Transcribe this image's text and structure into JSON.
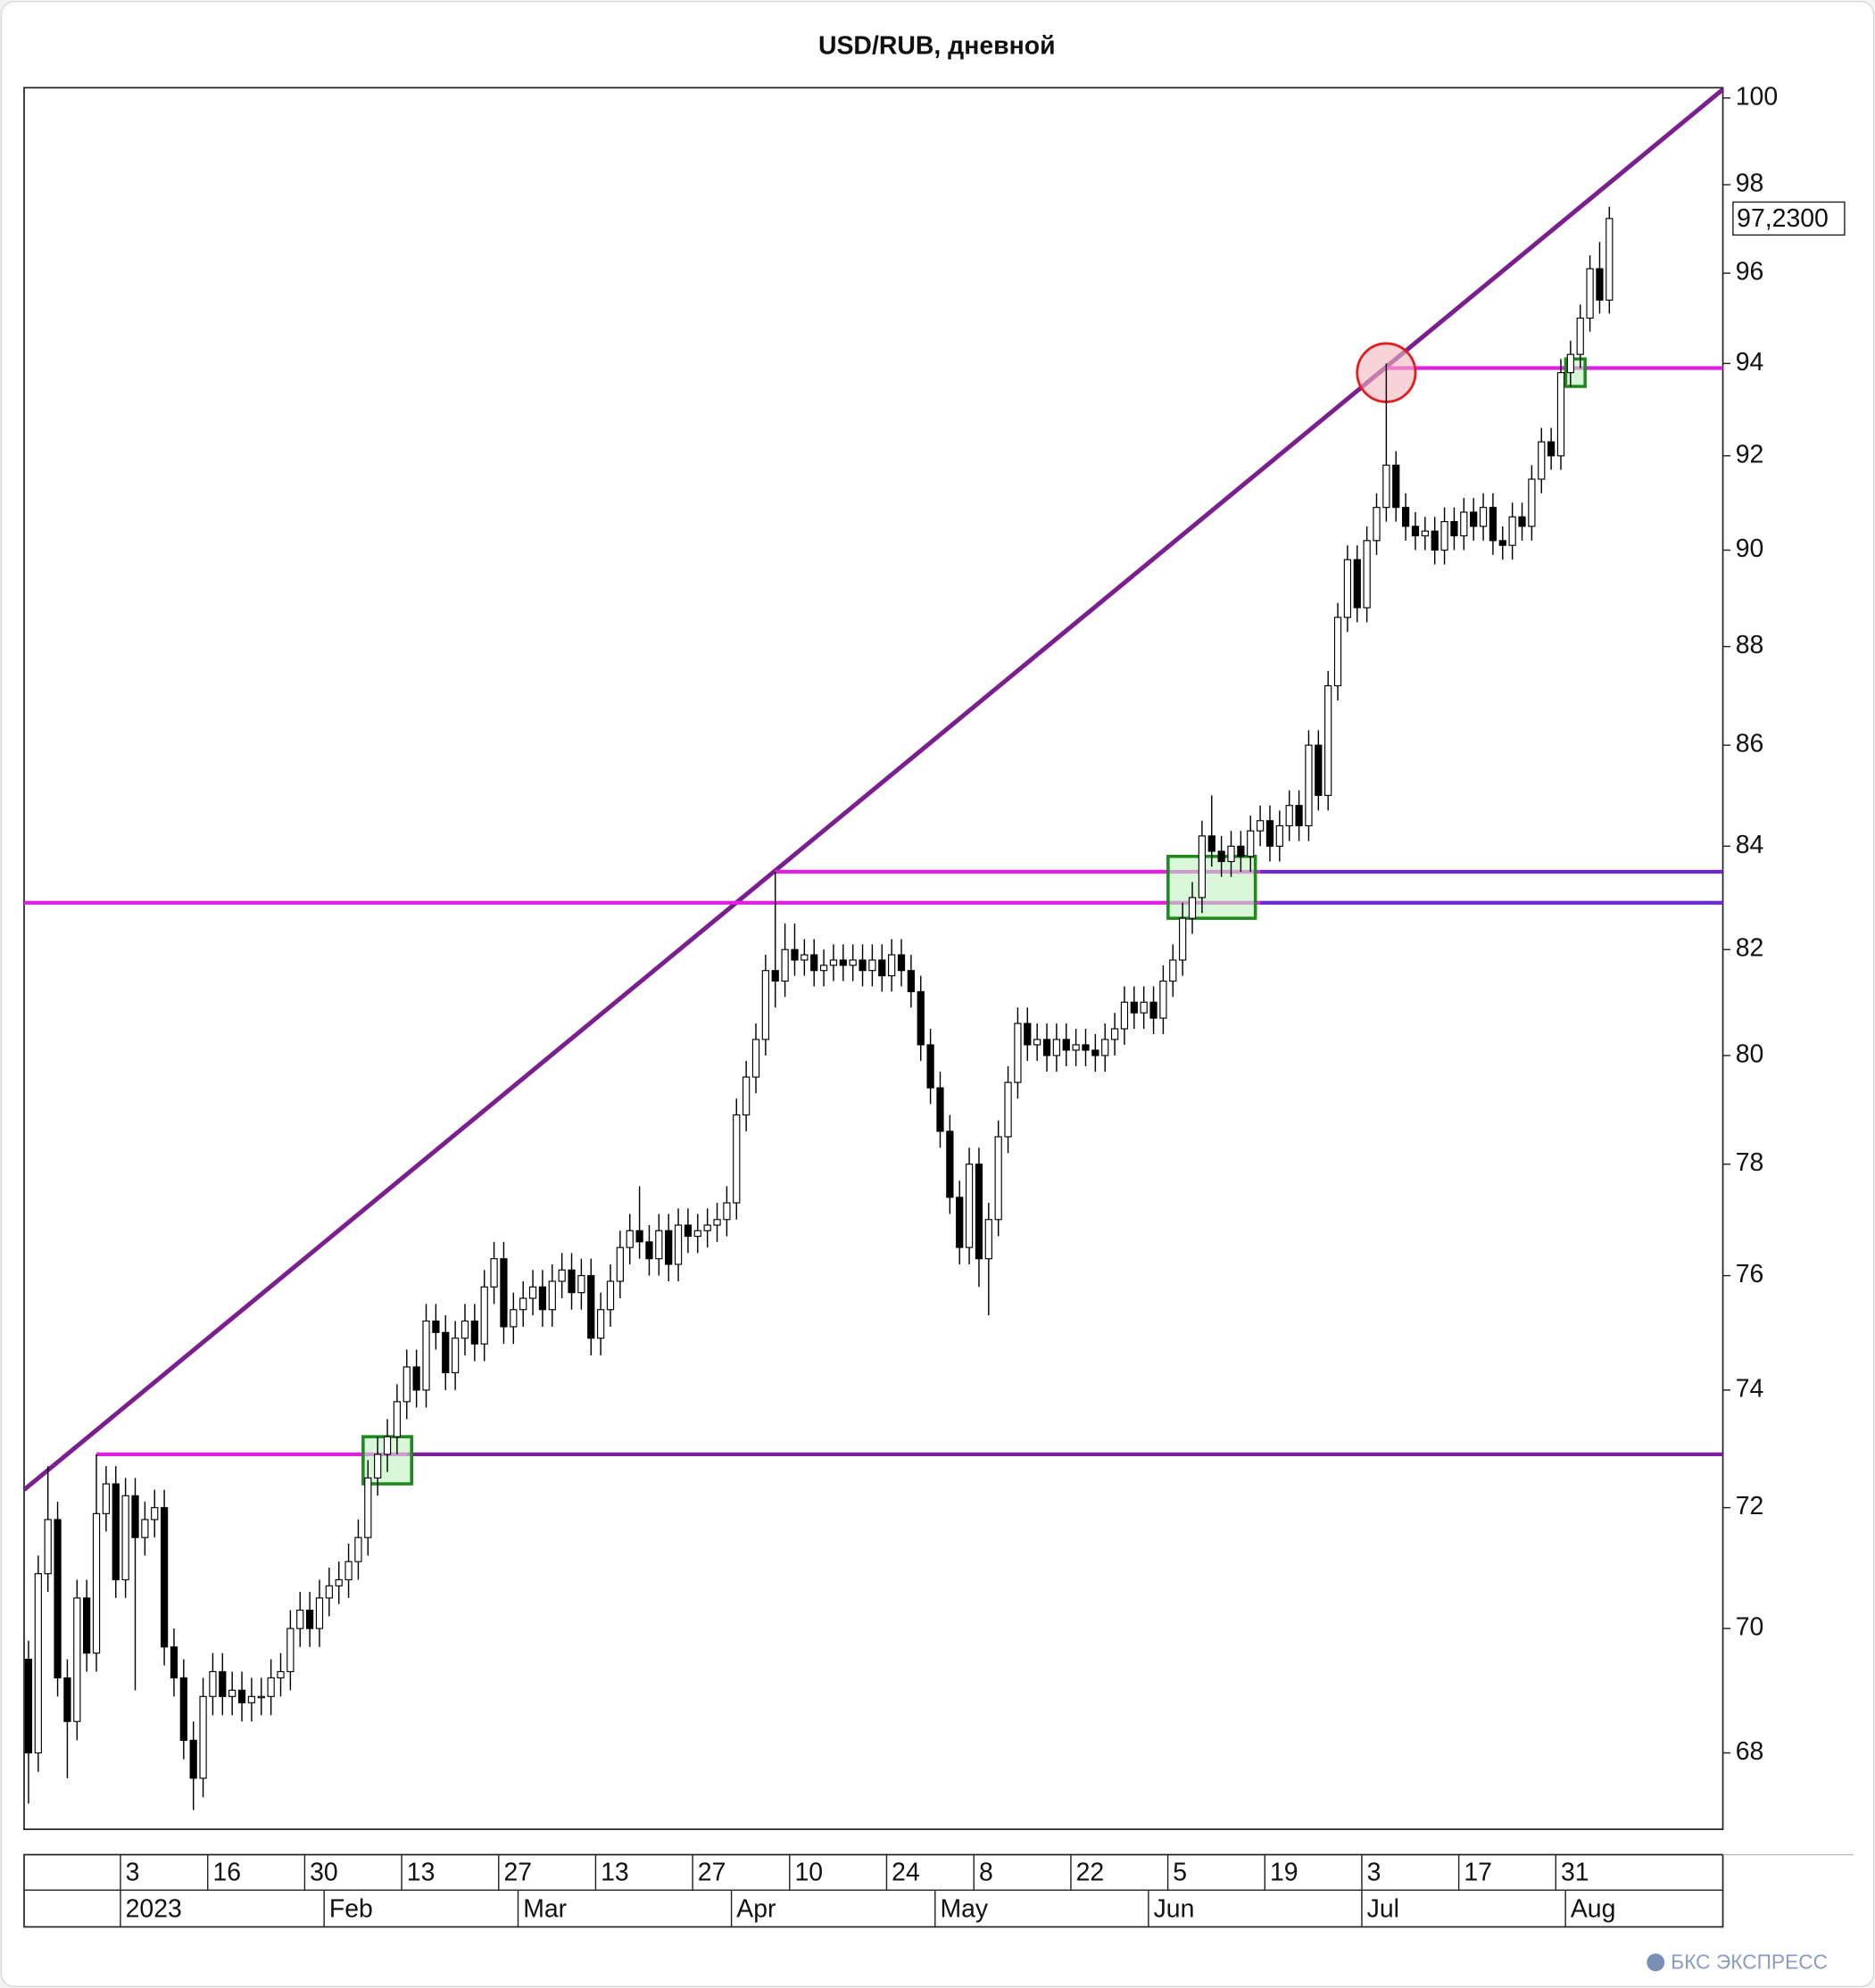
{
  "chart_data": {
    "type": "candlestick",
    "title": "USD/RUB, дневной",
    "watermark": "БКС ЭКСПРЕСС",
    "log_scale": true,
    "ylim": [
      66.8,
      100.24
    ],
    "yticks": [
      68,
      70,
      72,
      74,
      76,
      78,
      80,
      82,
      84,
      86,
      88,
      90,
      92,
      94,
      96,
      98,
      100
    ],
    "last_label": {
      "value": 97.23,
      "label": "97,2300"
    },
    "up_color": "#ffffff",
    "down_color": "#000000",
    "categories": [
      null,
      null,
      null,
      null,
      null,
      null,
      null,
      null,
      null,
      null,
      "3",
      null,
      null,
      null,
      null,
      null,
      null,
      null,
      null,
      "16",
      null,
      null,
      null,
      null,
      null,
      null,
      null,
      null,
      null,
      "30",
      null,
      null,
      null,
      null,
      null,
      null,
      null,
      null,
      null,
      "13",
      null,
      null,
      null,
      null,
      null,
      null,
      null,
      null,
      null,
      "27",
      null,
      null,
      null,
      null,
      null,
      null,
      null,
      null,
      null,
      "13",
      null,
      null,
      null,
      null,
      null,
      null,
      null,
      null,
      null,
      "27",
      null,
      null,
      null,
      null,
      null,
      null,
      null,
      null,
      null,
      "10",
      null,
      null,
      null,
      null,
      null,
      null,
      null,
      null,
      null,
      "24",
      null,
      null,
      null,
      null,
      null,
      null,
      null,
      null,
      "8",
      null,
      null,
      null,
      null,
      null,
      null,
      null,
      null,
      null,
      "22",
      null,
      null,
      null,
      null,
      null,
      null,
      null,
      null,
      null,
      "5",
      null,
      null,
      null,
      null,
      null,
      null,
      null,
      null,
      null,
      "19",
      null,
      null,
      null,
      null,
      null,
      null,
      null,
      null,
      null,
      "3",
      null,
      null,
      null,
      null,
      null,
      null,
      null,
      null,
      null,
      "17",
      null,
      null,
      null,
      null,
      null,
      null,
      null,
      null,
      null,
      "31",
      null,
      null,
      null,
      null,
      null
    ],
    "periods": [
      null,
      null,
      null,
      null,
      null,
      null,
      null,
      null,
      null,
      null,
      "2023",
      null,
      null,
      null,
      null,
      null,
      null,
      null,
      null,
      null,
      null,
      null,
      null,
      null,
      null,
      null,
      null,
      null,
      null,
      null,
      null,
      "Feb",
      null,
      null,
      null,
      null,
      null,
      null,
      null,
      null,
      null,
      null,
      null,
      null,
      null,
      null,
      null,
      null,
      null,
      null,
      null,
      "Mar",
      null,
      null,
      null,
      null,
      null,
      null,
      null,
      null,
      null,
      null,
      null,
      null,
      null,
      null,
      null,
      null,
      null,
      null,
      null,
      null,
      null,
      "Apr",
      null,
      null,
      null,
      null,
      null,
      null,
      null,
      null,
      null,
      null,
      null,
      null,
      null,
      null,
      null,
      null,
      null,
      null,
      null,
      null,
      "May",
      null,
      null,
      null,
      null,
      null,
      null,
      null,
      null,
      null,
      null,
      null,
      null,
      null,
      null,
      null,
      null,
      null,
      null,
      null,
      null,
      null,
      "Jun",
      null,
      null,
      null,
      null,
      null,
      null,
      null,
      null,
      null,
      null,
      null,
      null,
      null,
      null,
      null,
      null,
      null,
      null,
      null,
      null,
      null,
      "Jul",
      null,
      null,
      null,
      null,
      null,
      null,
      null,
      null,
      null,
      null,
      null,
      null,
      null,
      null,
      null,
      null,
      null,
      null,
      null,
      null,
      "Aug",
      null,
      null,
      null,
      null
    ],
    "open": [
      69.5,
      68.0,
      70.9,
      71.8,
      69.2,
      68.5,
      70.5,
      69.6,
      71.9,
      72.4,
      70.8,
      72.2,
      71.5,
      71.8,
      72.0,
      69.7,
      69.2,
      68.2,
      67.6,
      68.9,
      69.3,
      68.9,
      69.0,
      68.8,
      68.9,
      68.9,
      69.2,
      69.3,
      70.0,
      70.3,
      70.0,
      70.5,
      70.7,
      70.8,
      71.1,
      71.5,
      72.5,
      72.9,
      73.2,
      73.8,
      74.4,
      74.0,
      75.2,
      75.0,
      74.3,
      74.9,
      75.2,
      74.8,
      75.8,
      76.3,
      75.1,
      75.4,
      75.6,
      75.8,
      75.4,
      75.9,
      76.1,
      75.7,
      76.0,
      74.9,
      75.4,
      75.9,
      76.5,
      76.8,
      76.6,
      76.3,
      76.8,
      76.2,
      76.9,
      76.7,
      76.8,
      76.9,
      77.0,
      77.3,
      78.9,
      79.6,
      80.3,
      81.6,
      81.4,
      82.0,
      81.8,
      81.9,
      81.6,
      81.7,
      81.8,
      81.7,
      81.8,
      81.6,
      81.8,
      81.5,
      81.9,
      81.6,
      81.2,
      80.2,
      79.4,
      78.6,
      77.4,
      76.5,
      78.0,
      76.3,
      77.0,
      78.5,
      79.5,
      80.6,
      80.2,
      80.3,
      80.0,
      80.3,
      80.1,
      80.2,
      80.1,
      80.0,
      80.3,
      80.5,
      81.0,
      80.8,
      81.0,
      80.7,
      81.4,
      81.8,
      82.6,
      83.0,
      84.2,
      83.9,
      83.7,
      84.0,
      83.8,
      84.3,
      84.5,
      84.0,
      84.4,
      84.8,
      84.4,
      86.0,
      85.0,
      87.2,
      88.6,
      89.8,
      88.8,
      90.2,
      90.9,
      91.8,
      90.9,
      90.5,
      90.3,
      90.4,
      90.0,
      90.6,
      90.3,
      90.8,
      90.5,
      90.9,
      90.2,
      90.1,
      90.7,
      90.5,
      91.5,
      92.3,
      92.0,
      93.8,
      94.2,
      95.0,
      96.1,
      95.4
    ],
    "high": [
      69.8,
      71.2,
      72.7,
      72.1,
      69.5,
      70.8,
      70.8,
      72.9,
      72.7,
      72.7,
      72.5,
      72.5,
      72.1,
      72.3,
      72.3,
      70.0,
      69.5,
      68.5,
      69.2,
      69.6,
      69.6,
      69.3,
      69.3,
      69.2,
      69.2,
      69.5,
      69.6,
      70.3,
      70.6,
      70.6,
      70.8,
      71.0,
      71.1,
      71.4,
      71.8,
      72.8,
      73.2,
      73.5,
      74.1,
      74.7,
      74.7,
      75.5,
      75.5,
      75.3,
      75.2,
      75.5,
      75.5,
      76.1,
      76.6,
      76.6,
      75.7,
      75.9,
      76.1,
      76.1,
      76.2,
      76.4,
      76.4,
      76.3,
      76.3,
      75.7,
      76.2,
      76.8,
      77.1,
      77.6,
      76.9,
      77.1,
      77.1,
      77.2,
      77.2,
      77.1,
      77.2,
      77.3,
      77.6,
      79.2,
      79.9,
      80.6,
      81.9,
      83.5,
      82.5,
      82.5,
      82.2,
      82.2,
      82.0,
      82.1,
      82.1,
      82.1,
      82.1,
      82.1,
      82.1,
      82.2,
      82.2,
      81.9,
      81.5,
      80.5,
      79.7,
      78.9,
      77.7,
      78.3,
      78.3,
      77.3,
      78.8,
      79.8,
      80.9,
      80.9,
      80.6,
      80.6,
      80.6,
      80.6,
      80.5,
      80.5,
      80.4,
      80.6,
      80.8,
      81.3,
      81.3,
      81.3,
      81.3,
      81.7,
      82.1,
      82.9,
      83.3,
      84.5,
      85.0,
      84.2,
      84.3,
      84.3,
      84.6,
      84.8,
      84.8,
      84.7,
      85.1,
      85.1,
      86.3,
      86.3,
      87.5,
      88.9,
      90.1,
      90.1,
      90.5,
      91.2,
      94.0,
      92.1,
      91.2,
      90.8,
      90.7,
      90.7,
      90.9,
      90.9,
      91.1,
      91.1,
      91.2,
      91.2,
      90.5,
      91.0,
      91.0,
      91.8,
      92.6,
      92.6,
      94.1,
      94.5,
      95.3,
      96.4,
      96.7,
      97.5
    ],
    "low": [
      67.2,
      67.7,
      70.6,
      68.9,
      67.6,
      68.2,
      69.3,
      69.3,
      71.6,
      70.5,
      70.5,
      69.0,
      71.2,
      71.5,
      69.4,
      68.9,
      67.9,
      67.1,
      67.3,
      68.6,
      68.6,
      68.6,
      68.5,
      68.5,
      68.6,
      68.6,
      68.9,
      69.0,
      69.7,
      69.7,
      69.7,
      70.2,
      70.4,
      70.5,
      70.8,
      71.2,
      72.2,
      72.6,
      72.9,
      73.5,
      73.7,
      73.7,
      74.7,
      74.0,
      74.0,
      74.6,
      74.5,
      74.5,
      75.5,
      74.8,
      74.8,
      75.1,
      75.3,
      75.1,
      75.1,
      75.6,
      75.4,
      75.4,
      74.6,
      74.6,
      75.1,
      75.6,
      76.2,
      76.3,
      76.0,
      76.0,
      75.9,
      75.9,
      76.4,
      76.4,
      76.5,
      76.6,
      76.7,
      77.0,
      78.6,
      79.3,
      80.0,
      80.9,
      81.1,
      81.5,
      81.5,
      81.3,
      81.3,
      81.4,
      81.4,
      81.4,
      81.3,
      81.3,
      81.2,
      81.2,
      81.3,
      80.9,
      79.9,
      79.1,
      78.3,
      77.1,
      76.2,
      76.2,
      75.8,
      75.3,
      76.7,
      78.2,
      79.2,
      79.9,
      79.9,
      79.7,
      79.7,
      79.8,
      79.8,
      79.8,
      79.7,
      79.7,
      80.0,
      80.2,
      80.5,
      80.5,
      80.4,
      80.4,
      81.1,
      81.5,
      82.3,
      82.7,
      83.6,
      83.4,
      83.4,
      83.5,
      83.5,
      84.0,
      83.7,
      83.7,
      84.1,
      84.1,
      84.1,
      84.7,
      84.7,
      86.9,
      88.3,
      88.5,
      88.5,
      89.9,
      90.6,
      90.6,
      90.2,
      90.0,
      90.0,
      89.7,
      89.7,
      90.0,
      90.0,
      90.2,
      90.2,
      89.9,
      89.8,
      89.8,
      90.2,
      90.2,
      91.2,
      91.7,
      91.7,
      93.5,
      93.9,
      94.7,
      95.1,
      95.1
    ],
    "close": [
      68.0,
      70.9,
      71.8,
      69.2,
      68.5,
      70.5,
      69.6,
      71.9,
      72.4,
      70.8,
      72.2,
      71.5,
      71.8,
      72.0,
      69.7,
      69.2,
      68.2,
      67.6,
      68.9,
      69.3,
      68.9,
      69.0,
      68.8,
      68.9,
      68.9,
      69.2,
      69.3,
      70.0,
      70.3,
      70.0,
      70.5,
      70.7,
      70.8,
      71.1,
      71.5,
      72.5,
      72.9,
      73.2,
      73.8,
      74.4,
      74.0,
      75.2,
      75.0,
      74.3,
      74.9,
      75.2,
      74.8,
      75.8,
      76.3,
      75.1,
      75.4,
      75.6,
      75.8,
      75.4,
      75.9,
      76.1,
      75.7,
      76.0,
      74.9,
      75.4,
      75.9,
      76.5,
      76.8,
      76.6,
      76.3,
      76.8,
      76.2,
      76.9,
      76.7,
      76.8,
      76.9,
      77.0,
      77.3,
      78.9,
      79.6,
      80.3,
      81.6,
      81.4,
      82.0,
      81.8,
      81.9,
      81.6,
      81.7,
      81.8,
      81.7,
      81.8,
      81.6,
      81.8,
      81.5,
      81.9,
      81.6,
      81.2,
      80.2,
      79.4,
      78.6,
      77.4,
      76.5,
      78.0,
      76.3,
      77.0,
      78.5,
      79.5,
      80.6,
      80.2,
      80.3,
      80.0,
      80.3,
      80.1,
      80.2,
      80.1,
      80.0,
      80.3,
      80.5,
      81.0,
      80.8,
      81.0,
      80.7,
      81.4,
      81.8,
      82.6,
      83.0,
      84.2,
      83.9,
      83.7,
      84.0,
      83.8,
      84.3,
      84.5,
      84.0,
      84.4,
      84.8,
      84.4,
      86.0,
      85.0,
      87.2,
      88.6,
      89.8,
      88.8,
      90.2,
      90.9,
      91.8,
      90.9,
      90.5,
      90.3,
      90.4,
      90.0,
      90.6,
      90.3,
      90.8,
      90.5,
      90.9,
      90.2,
      90.1,
      90.7,
      90.5,
      91.5,
      92.3,
      92.0,
      93.8,
      94.2,
      95.0,
      96.1,
      95.4,
      97.23
    ],
    "trendline": {
      "start": 72.3,
      "end": 100.2,
      "color": "#7b1f8e"
    },
    "levels": [
      {
        "value": 72.9,
        "from": 7,
        "split": 39,
        "colors": [
          "#e020e0",
          "#7b1f9e"
        ]
      },
      {
        "value": 82.9,
        "from": null,
        "split": 127,
        "colors": [
          "#e020e0",
          "#6a2bd0"
        ]
      },
      {
        "value": 83.5,
        "from": 77,
        "split": 127,
        "colors": [
          "#e020e0",
          "#6a2bd0"
        ]
      },
      {
        "value": 93.9,
        "from": 140,
        "split": null,
        "colors": [
          "#e020e0"
        ]
      }
    ],
    "highlights": [
      {
        "from": 35,
        "to": 39,
        "low": 72.4,
        "high": 73.2,
        "color": "#1e8a1e"
      },
      {
        "from": 118,
        "to": 126,
        "low": 82.6,
        "high": 83.8,
        "color": "#1e8a1e"
      },
      {
        "from": 159,
        "to": 160,
        "low": 93.5,
        "high": 94.1,
        "color": "#1e8a1e"
      }
    ],
    "circle": {
      "index": 140,
      "value": 93.8,
      "color": "#e02020"
    }
  }
}
